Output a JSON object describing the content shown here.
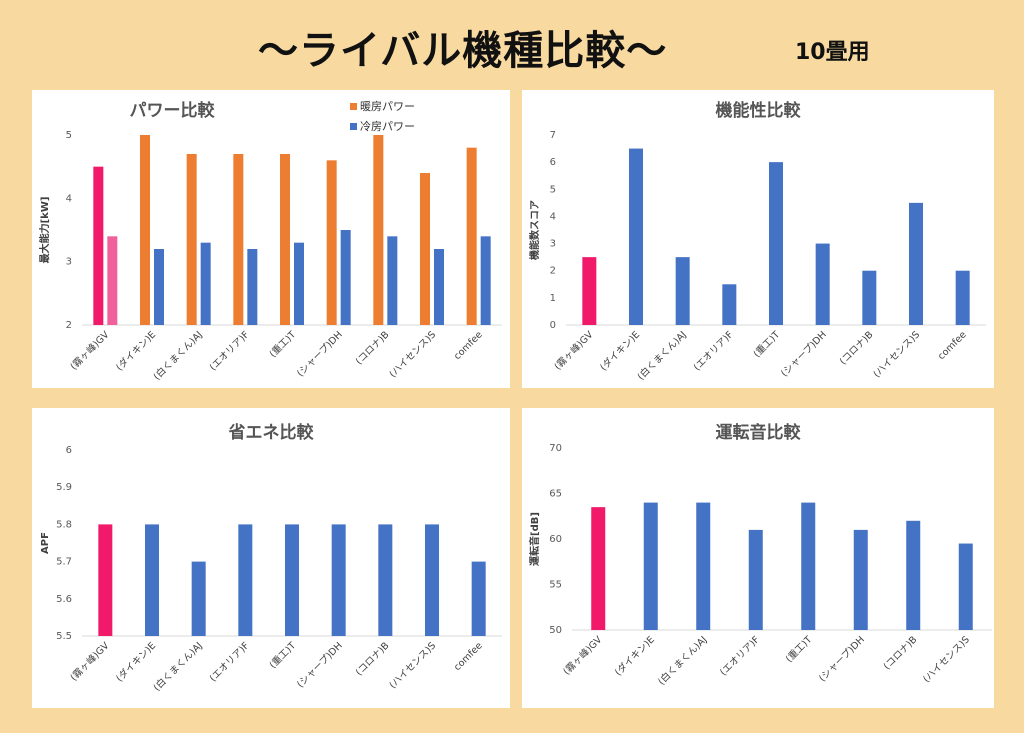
{
  "header": {
    "title": "〜ライバル機種比較〜",
    "subtitle": "10畳用"
  },
  "colors": {
    "orange": "#ed7d31",
    "blue": "#4472c4",
    "highlight": "#f0196a",
    "highlight_light": "#f0609a"
  },
  "chart_data": [
    {
      "id": "power",
      "type": "bar",
      "title": "パワー比較",
      "ylabel": "最大能力[kW]",
      "ylim": [
        2,
        5
      ],
      "yticks": [
        2,
        3,
        4,
        5
      ],
      "categories": [
        "(霧ヶ峰)GV",
        "(ダイキン)E",
        "(白くまくん)AJ",
        "(エオリア)F",
        "(重工)T",
        "(シャープ)DH",
        "(コロナ)B",
        "(ハイセンス)S",
        "comfee"
      ],
      "series": [
        {
          "name": "暖房パワー",
          "values": [
            4.5,
            5.0,
            4.7,
            4.7,
            4.7,
            4.6,
            5.0,
            4.4,
            4.8
          ]
        },
        {
          "name": "冷房パワー",
          "values": [
            3.4,
            3.2,
            3.3,
            3.2,
            3.3,
            3.5,
            3.4,
            3.2,
            3.4
          ]
        }
      ],
      "legend": "top-right",
      "highlight_index": 0
    },
    {
      "id": "function",
      "type": "bar",
      "title": "機能性比較",
      "ylabel": "機能数スコア",
      "ylim": [
        0,
        7
      ],
      "yticks": [
        0,
        1,
        2,
        3,
        4,
        5,
        6,
        7
      ],
      "categories": [
        "(霧ヶ峰)GV",
        "(ダイキン)E",
        "(白くまくん)AJ",
        "(エオリア)F",
        "(重工)T",
        "(シャープ)DH",
        "(コロナ)B",
        "(ハイセンス)S",
        "comfee"
      ],
      "values": [
        2.5,
        6.5,
        2.5,
        1.5,
        6.0,
        3.0,
        2.0,
        4.5,
        2.0
      ],
      "highlight_index": 0
    },
    {
      "id": "energy",
      "type": "bar",
      "title": "省エネ比較",
      "ylabel": "APF",
      "ylim": [
        5.5,
        6
      ],
      "yticks": [
        5.5,
        5.6,
        5.7,
        5.8,
        5.9,
        6
      ],
      "categories": [
        "(霧ヶ峰)GV",
        "(ダイキン)E",
        "(白くまくん)AJ",
        "(エオリア)F",
        "(重工)T",
        "(シャープ)DH",
        "(コロナ)B",
        "(ハイセンス)S",
        "comfee"
      ],
      "values": [
        5.8,
        5.8,
        5.7,
        5.8,
        5.8,
        5.8,
        5.8,
        5.8,
        5.7
      ],
      "highlight_index": 0
    },
    {
      "id": "noise",
      "type": "bar",
      "title": "運転音比較",
      "ylabel": "運転音[dB]",
      "ylim": [
        50,
        70
      ],
      "yticks": [
        50,
        55,
        60,
        65,
        70
      ],
      "categories": [
        "(霧ヶ峰)GV",
        "(ダイキン)E",
        "(白くまくん)AJ",
        "(エオリア)F",
        "(重工)T",
        "(シャープ)DH",
        "(コロナ)B",
        "(ハイセンス)S"
      ],
      "values": [
        63.5,
        64,
        64,
        61,
        64,
        61,
        62,
        59.5
      ],
      "highlight_index": 0
    }
  ]
}
